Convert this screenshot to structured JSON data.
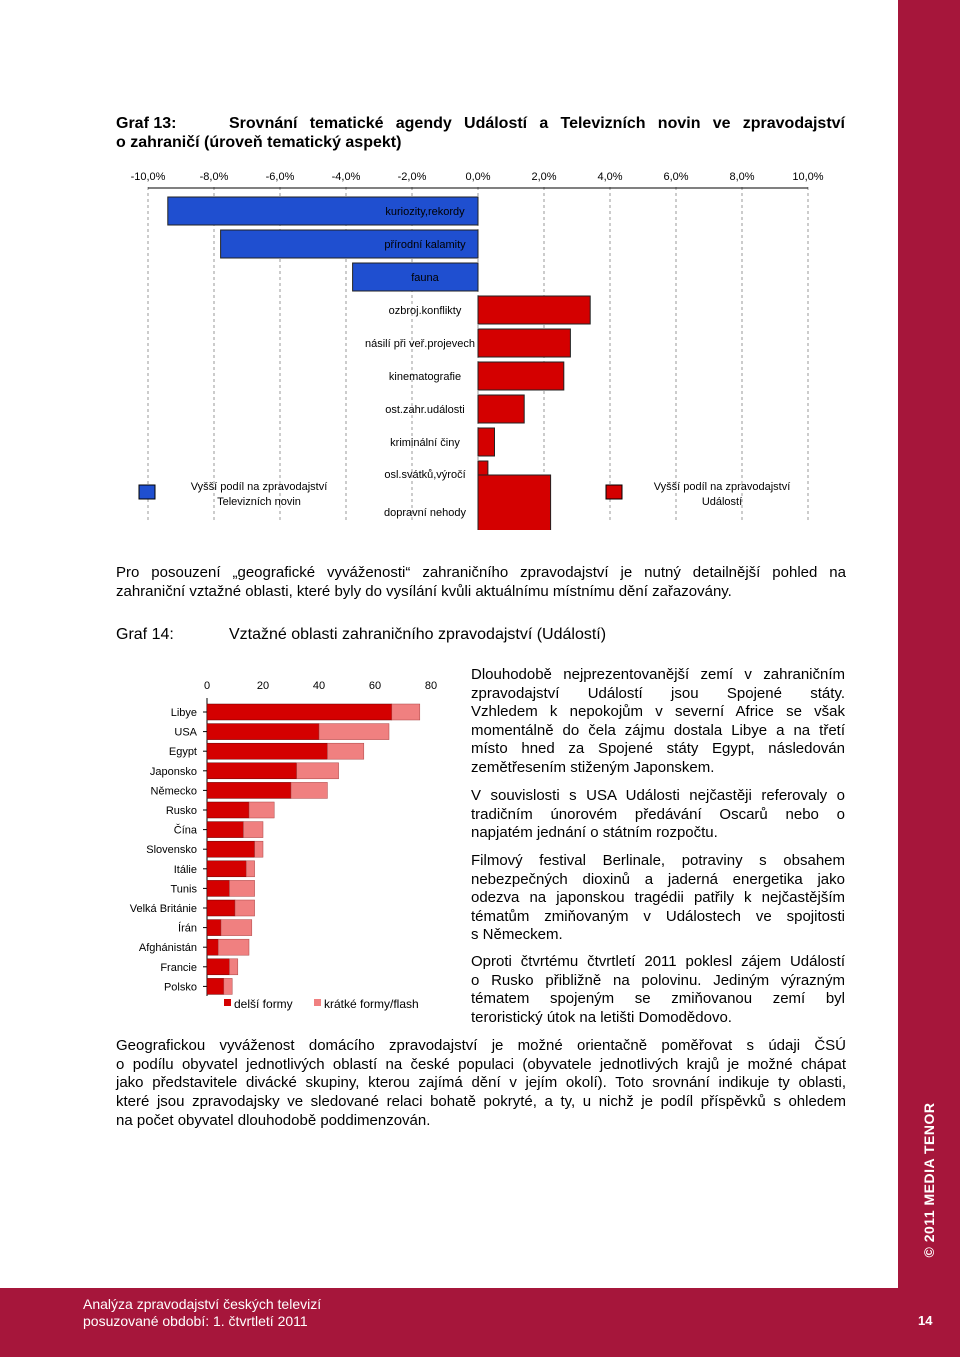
{
  "graph13": {
    "label": "Graf 13:",
    "title_line1": "Srovnání tematické agendy Událostí a Televizních novin ve zpravodajství",
    "title_line2": "o zahraničí (úroveň tematický aspekt)"
  },
  "graph14": {
    "label": "Graf 14:",
    "title": "Vztažné oblasti zahraničního zpravodajství (Událostí)"
  },
  "intro_text": {
    "line1": "Pro posouzení „geografické vyváženosti“ zahraničního zpravodajství je nutný detailnější pohled na",
    "line2": "zahraniční vztažné oblasti, které byly do vysílání kvůli aktuálnímu místnímu dění zařazovány."
  },
  "side_text": {
    "p1": [
      "Dlouhodobě nejprezentovanější zemí v zahraničním",
      "zpravodajství Událostí jsou Spojené státy.",
      "Vzhledem k nepokojům v severní Africe se však",
      "momentálně do čela zájmu dostala Libye a na třetí",
      "místo hned za Spojené státy Egypt, následován",
      "zemětřesením stiženým Japonskem."
    ],
    "p2": [
      "V souvislosti s USA Události nejčastěji referovaly o",
      "tradičním únorovém předávání Oscarů nebo o",
      "napjatém jednání o státním rozpočtu."
    ],
    "p3": [
      "Filmový festival Berlinale, potraviny s obsahem",
      "nebezpečných dioxinů a jaderná energetika jako",
      "odezva na japonskou tragédii patřily k nejčastějším",
      "tématům zmiňovaným v Událostech ve spojitosti",
      "s Německem."
    ],
    "p4": [
      "Oproti čtvrtému čtvrtletí 2011 poklesl zájem Událostí",
      "o Rusko přibližně na polovinu. Jediným výrazným",
      "tématem spojeným se zmiňovanou zemí byl",
      "teroristický útok na letišti Domodědovo."
    ]
  },
  "bottom_text": [
    "Geografickou vyváženost domácího zpravodajství je možné orientačně poměřovat s údaji ČSÚ",
    "o podílu obyvatel jednotlivých oblastí na české populaci (obyvatele jednotlivých krajů je možné chápat",
    "jako představitele divácké skupiny, kterou zajímá dění v jejím okolí). Toto srovnání indikuje ty oblasti,",
    "které jsou zpravodajsky ve sledované relaci bohatě pokryté, a ty, u nichž je podíl příspěvků s ohledem",
    "na počet obyvatel dlouhodobě poddimenzován."
  ],
  "footer": {
    "line1": "Analýza zpravodajství českých televizí",
    "line2": "posuzované období: 1. čtvrtletí 2011",
    "page_number": "14"
  },
  "sidebar_text": "© 2011 MEDIA TENOR",
  "colors": {
    "brand": "#a6163b",
    "blue": "#1f4fd0",
    "red": "#d40000",
    "pink": "#f08080"
  },
  "chart_data": [
    {
      "type": "bar",
      "orientation": "horizontal-diverging",
      "tick_labels": [
        "-10,0%",
        "-8,0%",
        "-6,0%",
        "-4,0%",
        "-2,0%",
        "0,0%",
        "2,0%",
        "4,0%",
        "6,0%",
        "8,0%",
        "10,0%"
      ],
      "xlim": [
        -10,
        10
      ],
      "categories": [
        "kuriozity,rekordy",
        "přírodní kalamity",
        "fauna",
        "ozbroj.konflikty",
        "násilí při veř.projevech",
        "kinematografie",
        "ost.zahr.události",
        "kriminální činy",
        "osl.svátků,výročí",
        "dopravní nehody"
      ],
      "values": [
        -9.4,
        -7.8,
        -3.8,
        3.4,
        2.8,
        2.6,
        1.4,
        0.5,
        0.3,
        2.2
      ],
      "legend": [
        {
          "name": "Vyšší podíl na zpravodajství Televizních novin",
          "color": "#1f4fd0"
        },
        {
          "name": "Vyšší podíl na zpravodajství Událostí",
          "color": "#d40000"
        }
      ]
    },
    {
      "type": "bar",
      "orientation": "horizontal-stacked",
      "tick_labels": [
        "0",
        "20",
        "40",
        "60",
        "80"
      ],
      "xlim": [
        0,
        80
      ],
      "categories": [
        "Libye",
        "USA",
        "Egypt",
        "Japonsko",
        "Německo",
        "Rusko",
        "Čína",
        "Slovensko",
        "Itálie",
        "Tunis",
        "Velká Británie",
        "Írán",
        "Afghánistán",
        "Francie",
        "Polsko"
      ],
      "series": [
        {
          "name": "delší formy",
          "values": [
            66,
            40,
            43,
            32,
            30,
            15,
            13,
            17,
            14,
            8,
            10,
            5,
            4,
            8,
            6
          ]
        },
        {
          "name": "krátké formy/flash",
          "values": [
            10,
            25,
            13,
            15,
            13,
            9,
            7,
            3,
            3,
            9,
            7,
            11,
            11,
            3,
            3
          ]
        }
      ],
      "legend_placement": "bottom"
    }
  ]
}
